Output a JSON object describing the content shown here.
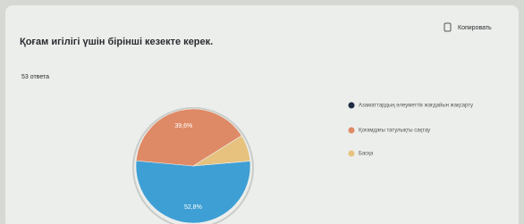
{
  "chart_data": {
    "type": "pie",
    "title": "Қоғам игілігі үшін бірінші кезекте керек.",
    "subtitle": "53 ответа",
    "copy_button": "Копировать",
    "categories": [
      "Азаматтардың әлеуметтік жағдайын жақсарту",
      "Қоғамдағы татулықты сақтау",
      "Басқа"
    ],
    "values": [
      52.8,
      39.6,
      7.5
    ],
    "value_labels": [
      "52,8%",
      "39,6%",
      null
    ],
    "colors": [
      "#3e9fd4",
      "#df8a66",
      "#e6c27e"
    ]
  }
}
